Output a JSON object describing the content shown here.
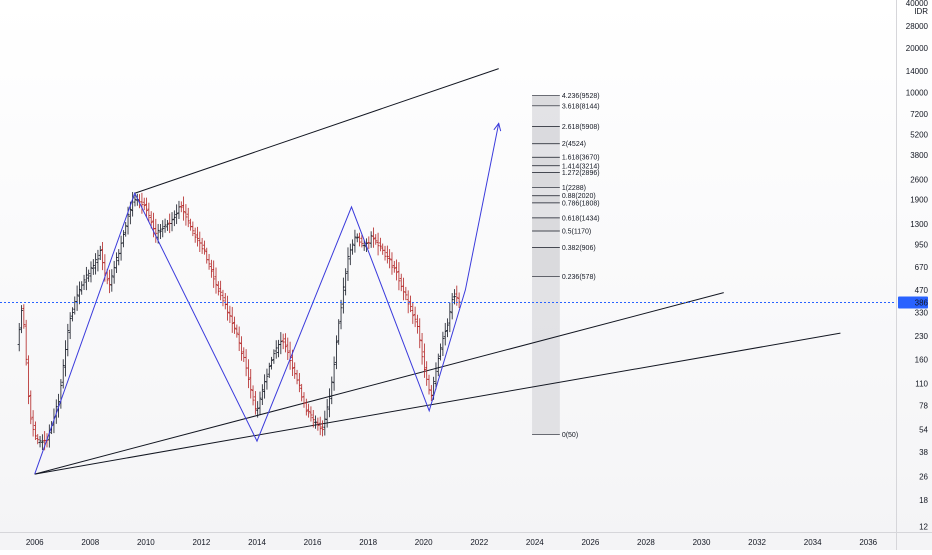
{
  "chart_data": {
    "type": "candlestick",
    "currency_label": "IDR",
    "y_scale": "log",
    "y_range": [
      11,
      42000
    ],
    "x_range": [
      2004.75,
      2037.0
    ],
    "grid": false,
    "y_ticks": [
      "40000",
      "28000",
      "20000",
      "14000",
      "10000",
      "7200",
      "5200",
      "3800",
      "2600",
      "1900",
      "1300",
      "950",
      "670",
      "470",
      "330",
      "230",
      "160",
      "110",
      "78",
      "54",
      "38",
      "26",
      "18",
      "12"
    ],
    "x_ticks": [
      "2006",
      "2008",
      "2010",
      "2012",
      "2014",
      "2016",
      "2018",
      "2020",
      "2022",
      "2024",
      "2026",
      "2028",
      "2030",
      "2032",
      "2034",
      "2036"
    ],
    "last_price": {
      "label": "386",
      "value": 386,
      "color": "#2962ff"
    },
    "price_path": [
      [
        2005.4,
        200
      ],
      [
        2005.6,
        380
      ],
      [
        2005.85,
        72
      ],
      [
        2006.1,
        44
      ],
      [
        2006.5,
        47
      ],
      [
        2006.9,
        85
      ],
      [
        2007.3,
        300
      ],
      [
        2007.7,
        500
      ],
      [
        2008.1,
        650
      ],
      [
        2008.4,
        850
      ],
      [
        2008.7,
        500
      ],
      [
        2009.1,
        900
      ],
      [
        2009.6,
        2000
      ],
      [
        2010.0,
        1700
      ],
      [
        2010.4,
        1100
      ],
      [
        2010.9,
        1350
      ],
      [
        2011.3,
        1750
      ],
      [
        2011.7,
        1200
      ],
      [
        2012.1,
        900
      ],
      [
        2012.5,
        550
      ],
      [
        2012.9,
        370
      ],
      [
        2013.3,
        240
      ],
      [
        2013.7,
        130
      ],
      [
        2014.0,
        70
      ],
      [
        2014.3,
        110
      ],
      [
        2014.6,
        170
      ],
      [
        2015.0,
        220
      ],
      [
        2015.4,
        130
      ],
      [
        2015.8,
        75
      ],
      [
        2016.1,
        60
      ],
      [
        2016.4,
        55
      ],
      [
        2016.7,
        100
      ],
      [
        2017.0,
        300
      ],
      [
        2017.3,
        750
      ],
      [
        2017.6,
        1100
      ],
      [
        2017.9,
        900
      ],
      [
        2018.2,
        1100
      ],
      [
        2018.6,
        850
      ],
      [
        2019.0,
        650
      ],
      [
        2019.4,
        420
      ],
      [
        2019.8,
        270
      ],
      [
        2020.1,
        130
      ],
      [
        2020.3,
        90
      ],
      [
        2020.6,
        180
      ],
      [
        2020.9,
        280
      ],
      [
        2021.1,
        450
      ],
      [
        2021.3,
        386
      ]
    ],
    "trendlines": [
      {
        "from": [
          2006.0,
          27
        ],
        "to": [
          2030.8,
          450
        ],
        "color": "#131722"
      },
      {
        "from": [
          2006.0,
          27
        ],
        "to": [
          2035.0,
          240
        ],
        "color": "#131722"
      },
      {
        "from": [
          2009.6,
          2100
        ],
        "to": [
          2022.7,
          14500
        ],
        "color": "#131722"
      }
    ],
    "projection_path": {
      "color": "#3b3bdc",
      "points": [
        [
          2006.0,
          27
        ],
        [
          2009.6,
          2100
        ],
        [
          2014.0,
          45
        ],
        [
          2017.4,
          1700
        ],
        [
          2020.2,
          72
        ],
        [
          2021.5,
          470
        ],
        [
          2022.7,
          6200
        ]
      ]
    },
    "fibonacci": {
      "x_start": 2023.9,
      "x_end": 2024.9,
      "levels": [
        {
          "ratio": 4.236,
          "price": 9528,
          "label": "4.236(9528)"
        },
        {
          "ratio": 3.618,
          "price": 8144,
          "label": "3.618(8144)"
        },
        {
          "ratio": 2.618,
          "price": 5908,
          "label": "2.618(5908)"
        },
        {
          "ratio": 2,
          "price": 4524,
          "label": "2(4524)"
        },
        {
          "ratio": 1.618,
          "price": 3670,
          "label": "1.618(3670)"
        },
        {
          "ratio": 1.414,
          "price": 3214,
          "label": "1.414(3214)"
        },
        {
          "ratio": 1.272,
          "price": 2896,
          "label": "1.272(2896)"
        },
        {
          "ratio": 1,
          "price": 2288,
          "label": "1(2288)"
        },
        {
          "ratio": 0.88,
          "price": 2020,
          "label": "0.88(2020)"
        },
        {
          "ratio": 0.786,
          "price": 1808,
          "label": "0.786(1808)"
        },
        {
          "ratio": 0.618,
          "price": 1434,
          "label": "0.618(1434)"
        },
        {
          "ratio": 0.5,
          "price": 1170,
          "label": "0.5(1170)"
        },
        {
          "ratio": 0.382,
          "price": 906,
          "label": "0.382(906)"
        },
        {
          "ratio": 0.236,
          "price": 578,
          "label": "0.236(578)"
        },
        {
          "ratio": 0,
          "price": 50,
          "label": "0(50)"
        }
      ]
    },
    "colors": {
      "up": "#131722",
      "down": "#b22222",
      "axis_text": "#131722"
    }
  }
}
